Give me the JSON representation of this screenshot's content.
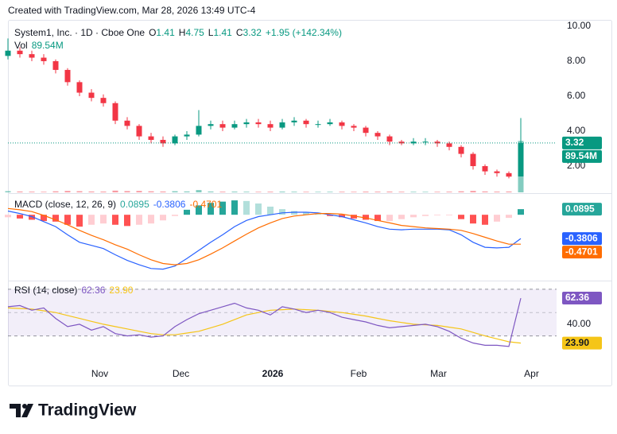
{
  "header": {
    "credit": "Created with TradingView.com, Mar 28, 2026 13:49 UTC-4"
  },
  "footer": {
    "brand": "TradingView"
  },
  "chart_data": {
    "type": "candlestick",
    "title": "System1, Inc. · 1D · Cboe One",
    "legend_keys": [
      "O",
      "H",
      "L",
      "C"
    ],
    "change_label": "+1.95 (+142.34%)",
    "up_color": "#089981",
    "down_color": "#f23645",
    "xlim": [
      0,
      46
    ],
    "xticks": [
      {
        "value": 7.7,
        "label": "Nov"
      },
      {
        "value": 14.5,
        "label": "Dec"
      },
      {
        "value": 22.2,
        "label": "2026"
      },
      {
        "value": 29.4,
        "label": "Feb"
      },
      {
        "value": 36.1,
        "label": "Mar"
      },
      {
        "value": 43.9,
        "label": "Apr"
      }
    ],
    "ylim": [
      0.5,
      10.36
    ],
    "yticks": [
      {
        "value": 2,
        "label": "2.00"
      },
      {
        "value": 4,
        "label": "4.00"
      },
      {
        "value": 6,
        "label": "6.00"
      },
      {
        "value": 8,
        "label": "8.00"
      },
      {
        "value": 10,
        "label": "10.00"
      }
    ],
    "grid": false,
    "open": [
      8.3,
      8.6,
      8.4,
      8.2,
      8.0,
      7.5,
      6.8,
      6.2,
      5.9,
      5.6,
      4.6,
      4.3,
      3.7,
      3.5,
      3.3,
      3.7,
      3.8,
      4.3,
      4.4,
      4.2,
      4.4,
      4.5,
      4.4,
      4.2,
      4.5,
      4.6,
      4.4,
      4.4,
      4.5,
      4.3,
      4.2,
      3.9,
      3.7,
      3.4,
      3.3,
      3.4,
      3.4,
      3.3,
      3.1,
      2.7,
      2.0,
      1.7,
      1.6,
      1.41
    ],
    "high": [
      9.3,
      8.8,
      8.6,
      8.4,
      8.1,
      7.6,
      6.9,
      6.4,
      6.1,
      5.7,
      4.8,
      4.4,
      3.9,
      3.7,
      3.8,
      4.0,
      5.2,
      4.6,
      4.6,
      4.6,
      4.7,
      4.7,
      4.6,
      4.7,
      4.8,
      4.7,
      4.6,
      4.7,
      4.6,
      4.4,
      4.3,
      4.0,
      3.8,
      3.5,
      3.6,
      3.6,
      3.5,
      3.4,
      3.2,
      2.8,
      2.1,
      1.8,
      1.7,
      4.75
    ],
    "low": [
      8.1,
      8.2,
      8.0,
      7.8,
      7.3,
      6.6,
      6.0,
      5.7,
      5.4,
      4.4,
      4.1,
      3.5,
      3.3,
      3.1,
      3.2,
      3.5,
      3.7,
      4.1,
      4.0,
      4.1,
      4.2,
      4.2,
      4.0,
      4.1,
      4.3,
      4.2,
      4.2,
      4.3,
      4.1,
      4.0,
      3.7,
      3.5,
      3.2,
      3.2,
      3.2,
      3.2,
      3.1,
      2.9,
      2.5,
      1.8,
      1.5,
      1.4,
      1.3,
      1.41
    ],
    "close": [
      8.6,
      8.4,
      8.2,
      8.0,
      7.5,
      6.8,
      6.2,
      5.9,
      5.6,
      4.6,
      4.3,
      3.7,
      3.5,
      3.3,
      3.7,
      3.8,
      4.3,
      4.4,
      4.2,
      4.4,
      4.5,
      4.4,
      4.2,
      4.5,
      4.6,
      4.4,
      4.4,
      4.5,
      4.3,
      4.2,
      3.9,
      3.7,
      3.4,
      3.3,
      3.4,
      3.4,
      3.3,
      3.1,
      2.7,
      2.0,
      1.7,
      1.6,
      1.4,
      3.32
    ],
    "volume": {
      "name": "Vol",
      "ylim": [
        0,
        300
      ],
      "values": [
        2.1,
        1.5,
        1.2,
        1.0,
        1.8,
        2.5,
        2.0,
        1.5,
        1.4,
        3.0,
        2.2,
        2.5,
        1.8,
        1.5,
        2.0,
        1.6,
        4.0,
        1.5,
        1.2,
        1.3,
        1.1,
        1.0,
        1.2,
        1.3,
        1.1,
        1.0,
        0.9,
        1.0,
        1.1,
        1.0,
        1.3,
        1.2,
        1.4,
        1.1,
        1.0,
        0.9,
        1.0,
        1.2,
        1.8,
        2.5,
        1.6,
        1.3,
        1.5,
        89.54
      ],
      "value_labels": [
        null,
        null,
        null,
        null,
        null,
        null,
        null,
        null,
        null,
        null,
        null,
        null,
        null,
        null,
        null,
        null,
        null,
        null,
        null,
        null,
        null,
        null,
        null,
        null,
        null,
        null,
        null,
        null,
        null,
        null,
        null,
        null,
        null,
        null,
        null,
        null,
        null,
        null,
        null,
        null,
        null,
        null,
        null,
        "89.54M"
      ]
    },
    "macd": {
      "title": "MACD (close, 12, 26, 9)",
      "ylim": [
        -1.04,
        0.32
      ],
      "histogram": {
        "rise_pos": "#26a69a",
        "fall_pos": "#b2dfdb",
        "fall_neg": "#ff5252",
        "rise_neg": "#ffcdd2",
        "values": [
          -0.04,
          -0.06,
          -0.08,
          -0.1,
          -0.11,
          -0.16,
          -0.19,
          -0.16,
          -0.14,
          -0.16,
          -0.18,
          -0.16,
          -0.14,
          -0.09,
          -0.02,
          0.08,
          0.15,
          0.19,
          0.21,
          0.23,
          0.22,
          0.18,
          0.13,
          0.09,
          0.06,
          0.04,
          0.01,
          -0.02,
          -0.04,
          -0.06,
          -0.08,
          -0.1,
          -0.1,
          -0.07,
          -0.04,
          -0.02,
          -0.01,
          -0.01,
          -0.07,
          -0.14,
          -0.16,
          -0.11,
          -0.05,
          0.0895
        ]
      },
      "macd": {
        "color": "#2962ff",
        "values": [
          0.06,
          0.02,
          -0.03,
          -0.11,
          -0.19,
          -0.32,
          -0.44,
          -0.49,
          -0.54,
          -0.64,
          -0.73,
          -0.8,
          -0.86,
          -0.87,
          -0.82,
          -0.7,
          -0.57,
          -0.44,
          -0.32,
          -0.19,
          -0.09,
          -0.03,
          0,
          0.03,
          0.04,
          0.04,
          0.03,
          0,
          -0.03,
          -0.08,
          -0.13,
          -0.19,
          -0.23,
          -0.24,
          -0.23,
          -0.23,
          -0.23,
          -0.24,
          -0.32,
          -0.44,
          -0.52,
          -0.53,
          -0.52,
          -0.3806
        ]
      },
      "signal": {
        "color": "#ff6d00",
        "values": [
          0.1,
          0.08,
          0.05,
          -0.01,
          -0.08,
          -0.16,
          -0.25,
          -0.33,
          -0.4,
          -0.48,
          -0.55,
          -0.64,
          -0.72,
          -0.78,
          -0.8,
          -0.78,
          -0.72,
          -0.63,
          -0.53,
          -0.42,
          -0.31,
          -0.21,
          -0.13,
          -0.06,
          -0.02,
          0,
          0.02,
          0.02,
          0.01,
          -0.02,
          -0.05,
          -0.09,
          -0.13,
          -0.17,
          -0.19,
          -0.21,
          -0.22,
          -0.23,
          -0.25,
          -0.3,
          -0.36,
          -0.42,
          -0.47,
          -0.4701
        ]
      }
    },
    "rsi": {
      "title": "RSI (14, close)",
      "ylim": [
        8,
        76
      ],
      "yticks": [
        {
          "value": 40,
          "label": "40.00"
        }
      ],
      "bands": [
        70,
        50,
        30
      ],
      "band_fill": "rgba(126,87,194,0.1)",
      "rsi": {
        "color": "#7e57c2",
        "values": [
          55,
          56,
          52,
          54,
          45,
          38,
          40,
          35,
          38,
          32,
          30,
          31,
          29,
          30,
          38,
          44,
          49,
          52,
          55,
          58,
          54,
          52,
          48,
          55,
          53,
          50,
          52,
          50,
          46,
          44,
          42,
          39,
          37,
          38,
          39,
          40,
          38,
          34,
          28,
          24,
          22,
          22,
          21,
          62.36
        ]
      },
      "ma": {
        "color": "#f5c518",
        "values": [
          54,
          53.5,
          53,
          51.5,
          50,
          47.5,
          45,
          42.5,
          40,
          38,
          36,
          34,
          32,
          31,
          31,
          32.5,
          34,
          37,
          40,
          44,
          48,
          50,
          52,
          52.5,
          53,
          52.5,
          52,
          51,
          50,
          48.5,
          47,
          45,
          43,
          41.5,
          40,
          39.5,
          39,
          37.5,
          36,
          33,
          30,
          27.5,
          25,
          23.9
        ],
        "value_labels": [
          null,
          null,
          null,
          null,
          null,
          null,
          null,
          null,
          null,
          null,
          null,
          null,
          null,
          null,
          null,
          null,
          null,
          null,
          null,
          null,
          null,
          null,
          null,
          null,
          null,
          null,
          null,
          null,
          null,
          null,
          null,
          null,
          null,
          null,
          null,
          null,
          null,
          null,
          null,
          null,
          null,
          null,
          null,
          "23.90"
        ]
      }
    }
  }
}
